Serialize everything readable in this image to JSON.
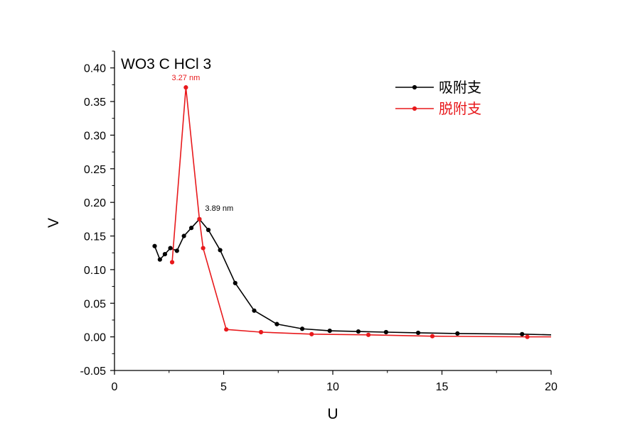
{
  "chart_data": {
    "type": "line",
    "title": "WO3 C HCl 3",
    "xlabel": "U",
    "ylabel": "V",
    "xlim": [
      0,
      20
    ],
    "ylim": [
      -0.05,
      0.425
    ],
    "xticks": [
      0,
      5,
      10,
      15,
      20
    ],
    "xtick_labels": [
      "0",
      "5",
      "10",
      "15",
      "20"
    ],
    "yticks": [
      -0.05,
      0.0,
      0.05,
      0.1,
      0.15,
      0.2,
      0.25,
      0.3,
      0.35,
      0.4
    ],
    "ytick_labels": [
      "-0.05",
      "0.00",
      "0.05",
      "0.10",
      "0.15",
      "0.20",
      "0.25",
      "0.30",
      "0.35",
      "0.40"
    ],
    "grid": false,
    "legend_position": "top-right",
    "series": [
      {
        "name": "吸附支",
        "color": "#000000",
        "x": [
          1.84,
          2.08,
          2.31,
          2.56,
          2.86,
          3.18,
          3.52,
          3.89,
          4.3,
          4.84,
          5.53,
          6.4,
          7.44,
          8.6,
          9.86,
          11.17,
          12.44,
          13.91,
          15.71,
          18.67,
          20.0
        ],
        "y": [
          0.135,
          0.115,
          0.123,
          0.132,
          0.128,
          0.15,
          0.162,
          0.175,
          0.159,
          0.129,
          0.08,
          0.039,
          0.019,
          0.012,
          0.009,
          0.008,
          0.007,
          0.006,
          0.005,
          0.004,
          0.003
        ]
      },
      {
        "name": "脱附支",
        "color": "#e8191c",
        "x": [
          2.64,
          3.27,
          3.89,
          4.06,
          5.12,
          6.71,
          9.03,
          11.63,
          14.56,
          18.91,
          20.0
        ],
        "y": [
          0.111,
          0.371,
          0.175,
          0.132,
          0.011,
          0.007,
          0.004,
          0.003,
          0.001,
          0.0,
          0.0
        ]
      }
    ],
    "annotations": [
      {
        "text": "3.27 nm",
        "x": 3.27,
        "y": 0.371,
        "color": "#e8191c"
      },
      {
        "text": "3.89 nm",
        "x": 3.89,
        "y": 0.175,
        "color": "#000000"
      }
    ]
  }
}
